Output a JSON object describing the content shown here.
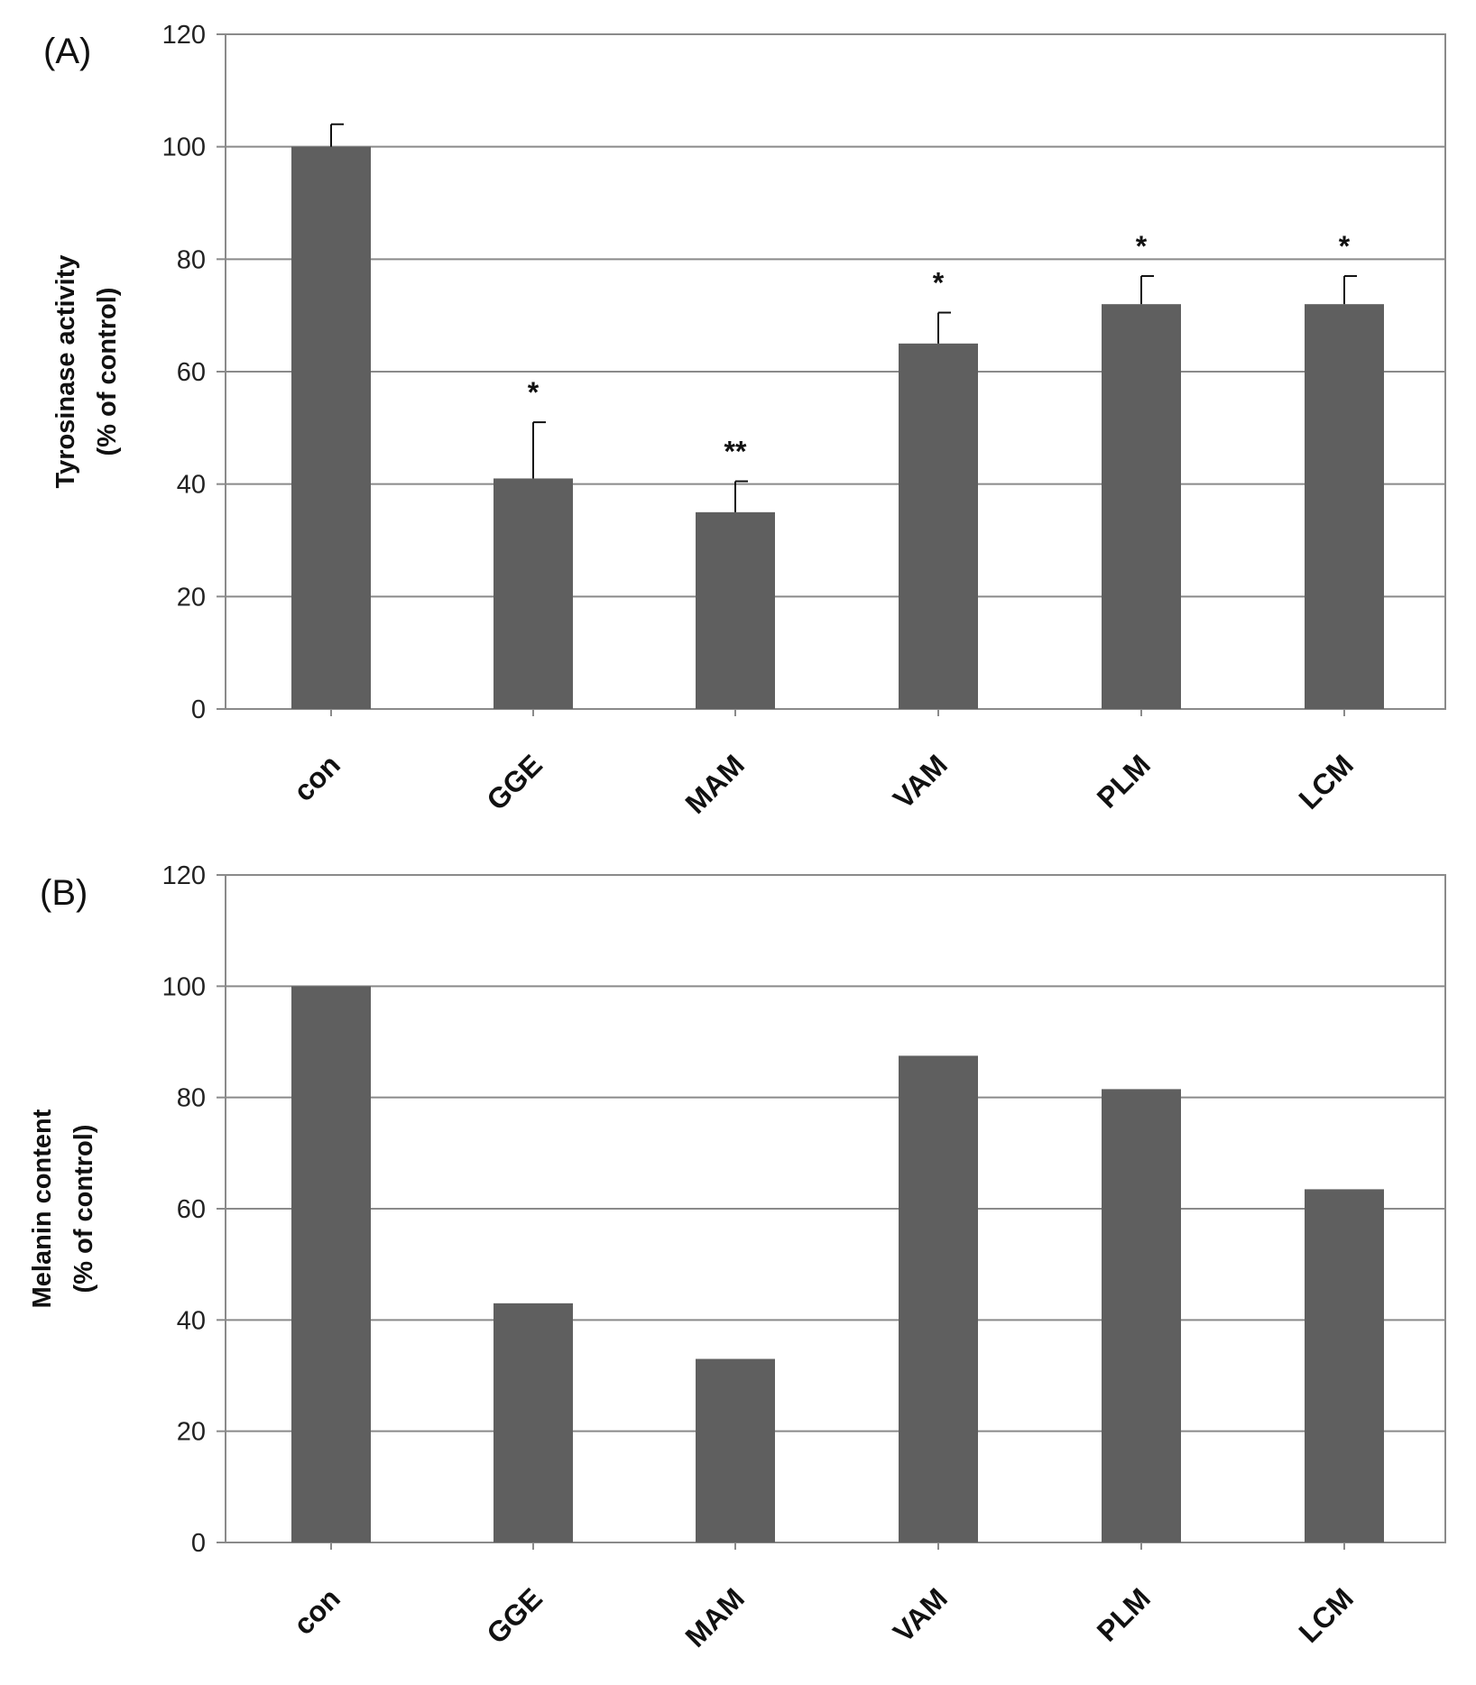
{
  "chart_data": [
    {
      "type": "bar",
      "panel_label": "(A)",
      "categories": [
        "con",
        "GGE",
        "MAM",
        "VAM",
        "PLM",
        "LCM"
      ],
      "values": [
        100,
        41,
        35,
        65,
        72,
        72
      ],
      "errors": [
        4,
        10,
        5.5,
        5.5,
        5,
        5
      ],
      "significance": [
        "",
        "*",
        "**",
        "*",
        "*",
        "*"
      ],
      "ylabel_lines": [
        "Tyrosinase activity",
        "(% of control)"
      ],
      "ylim": [
        0,
        120
      ],
      "yticks": [
        "0",
        "20",
        "40",
        "60",
        "80",
        "100",
        "120"
      ],
      "grid": true,
      "bar_color": "#5f5f5f"
    },
    {
      "type": "bar",
      "panel_label": "(B)",
      "categories": [
        "con",
        "GGE",
        "MAM",
        "VAM",
        "PLM",
        "LCM"
      ],
      "values": [
        100,
        43,
        33,
        87.5,
        81.5,
        63.5
      ],
      "ylabel_lines": [
        "Melanin content",
        "(% of control)"
      ],
      "ylim": [
        0,
        120
      ],
      "yticks": [
        "0",
        "20",
        "40",
        "60",
        "80",
        "100",
        "120"
      ],
      "grid": true,
      "bar_color": "#5f5f5f"
    }
  ]
}
